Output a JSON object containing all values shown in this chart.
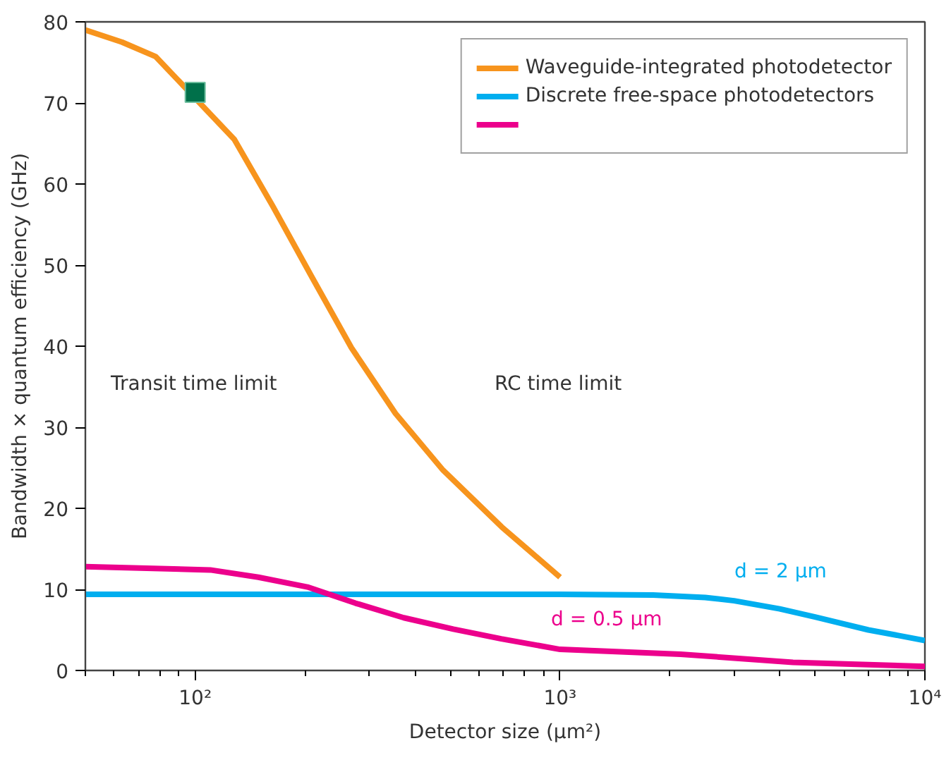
{
  "chart_data": {
    "type": "line",
    "xlabel": "Detector size (μm²)",
    "ylabel": "Bandwidth × quantum efficiency (GHz)",
    "log": "x",
    "xlim": [
      50,
      10000
    ],
    "ylim": [
      0,
      80
    ],
    "xticks": [
      {
        "value": 50,
        "label": null
      },
      {
        "value": 60,
        "label": null
      },
      {
        "value": 70,
        "label": null
      },
      {
        "value": 80,
        "label": null
      },
      {
        "value": 90,
        "label": null
      },
      {
        "value": 100,
        "label": "10²"
      },
      {
        "value": 200,
        "label": null
      },
      {
        "value": 300,
        "label": null
      },
      {
        "value": 400,
        "label": null
      },
      {
        "value": 500,
        "label": null
      },
      {
        "value": 600,
        "label": null
      },
      {
        "value": 700,
        "label": null
      },
      {
        "value": 800,
        "label": null
      },
      {
        "value": 900,
        "label": null
      },
      {
        "value": 1000,
        "label": "10³"
      },
      {
        "value": 2000,
        "label": null
      },
      {
        "value": 3000,
        "label": null
      },
      {
        "value": 4000,
        "label": null
      },
      {
        "value": 5000,
        "label": null
      },
      {
        "value": 6000,
        "label": null
      },
      {
        "value": 7000,
        "label": null
      },
      {
        "value": 8000,
        "label": null
      },
      {
        "value": 9000,
        "label": null
      },
      {
        "value": 10000,
        "label": "10⁴"
      }
    ],
    "yticks": [
      0,
      10,
      20,
      30,
      40,
      50,
      60,
      70,
      80
    ],
    "grid": false,
    "legend": "top right",
    "marker": "none",
    "line_style": "solid",
    "series": [
      {
        "name": "Waveguide-integrated photodetector",
        "color": "#f7941d",
        "x": [
          50,
          63,
          78,
          128,
          163,
          209,
          268,
          354,
          478,
          692,
          1000
        ],
        "values": [
          79.0,
          77.5,
          75.7,
          65.5,
          57.3,
          48.5,
          39.8,
          31.7,
          24.7,
          17.7,
          11.5
        ]
      },
      {
        "name": "Discrete free-space photodetectors",
        "color": "#00aeef",
        "x": [
          50,
          300,
          1000,
          1800,
          2500,
          3000,
          4000,
          5000,
          7000,
          10000
        ],
        "values": [
          9.4,
          9.4,
          9.4,
          9.3,
          9.0,
          8.6,
          7.6,
          6.6,
          5.0,
          3.7
        ]
      },
      {
        "color": "#ec008c",
        "x": [
          50,
          110,
          149,
          203,
          275,
          373,
          510,
          690,
          1000,
          2140,
          4350,
          10000
        ],
        "values": [
          12.8,
          12.4,
          11.5,
          10.3,
          8.3,
          6.5,
          5.1,
          3.9,
          2.6,
          2.0,
          1.0,
          0.5
        ]
      },
      {
        "type": "scatter",
        "marker": "square",
        "color": "#00704a",
        "x": [
          100
        ],
        "values": [
          71.3
        ]
      }
    ],
    "annotations": [
      "Transit time limit",
      "RC time limit",
      "d = 2 μm",
      "d = 0.5 μm"
    ]
  }
}
